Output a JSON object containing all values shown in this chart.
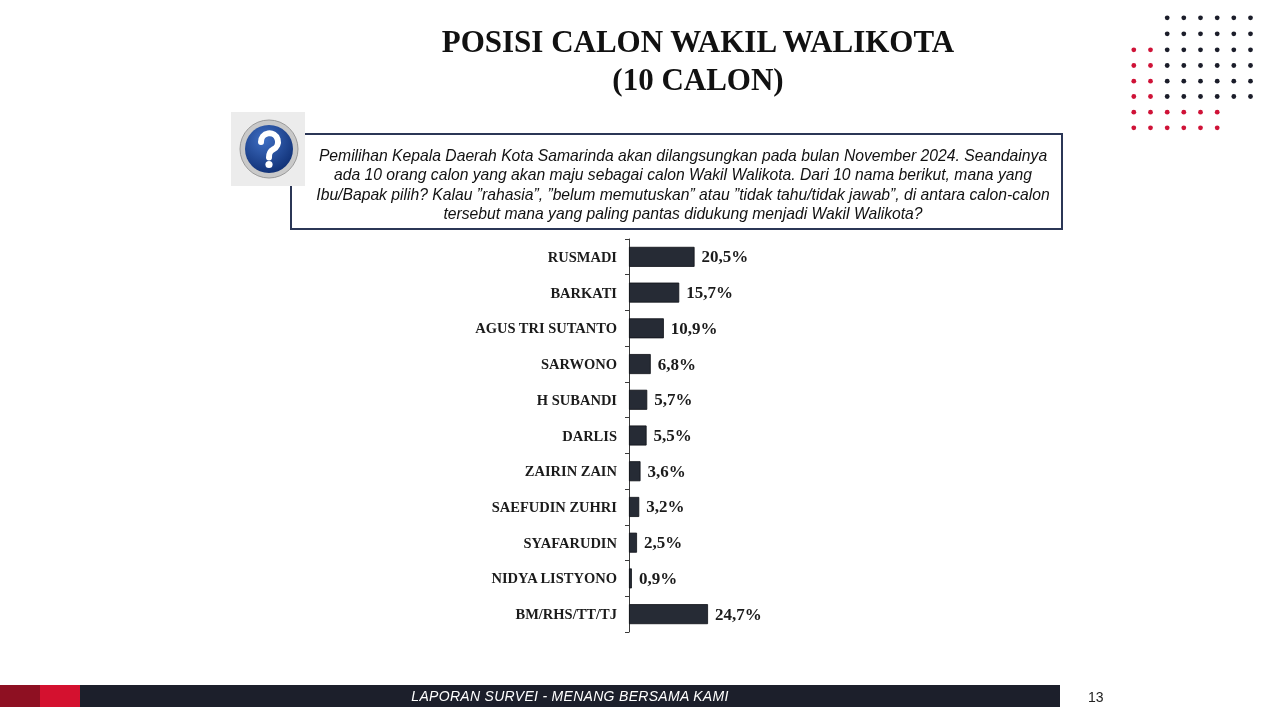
{
  "chart_data": {
    "type": "bar",
    "orientation": "horizontal",
    "title": "POSISI CALON WAKIL WALIKOTA (10 CALON)",
    "subtitle": "Pemilihan Kepala Daerah Kota Samarinda akan dilangsungkan pada bulan November 2024. Seandainya ada 10 orang calon yang akan maju sebagai calon Wakil Walikota. Dari 10 nama berikut, mana yang Ibu/Bapak pilih? Kalau ”rahasia”, ”belum memutuskan” atau ”tidak tahu/tidak jawab”, di antara calon-calon tersebut mana yang paling pantas didukung menjadi Wakil Walikota?",
    "annotations": [
      "LAPORAN SURVEI - MENANG BERSAMA KAMI",
      "13"
    ],
    "categories": [
      "RUSMADI",
      "BARKATI",
      "AGUS TRI SUTANTO",
      "SARWONO",
      "H SUBANDI",
      "DARLIS",
      "ZAIRIN ZAIN",
      "SAEFUDIN ZUHRI",
      "SYAFARUDIN",
      "NIDYA LISTYONO",
      "BM/RHS/TT/TJ"
    ],
    "values": [
      20.5,
      15.7,
      10.9,
      6.8,
      5.7,
      5.5,
      3.6,
      3.2,
      2.5,
      0.9,
      24.7
    ],
    "value_labels": [
      "20,5%",
      "15,7%",
      "10,9%",
      "6,8%",
      "5,7%",
      "5,5%",
      "3,6%",
      "3,2%",
      "2,5%",
      "0,9%",
      "24,7%"
    ],
    "color": "#262b35",
    "tick_labels": "y"
  }
}
